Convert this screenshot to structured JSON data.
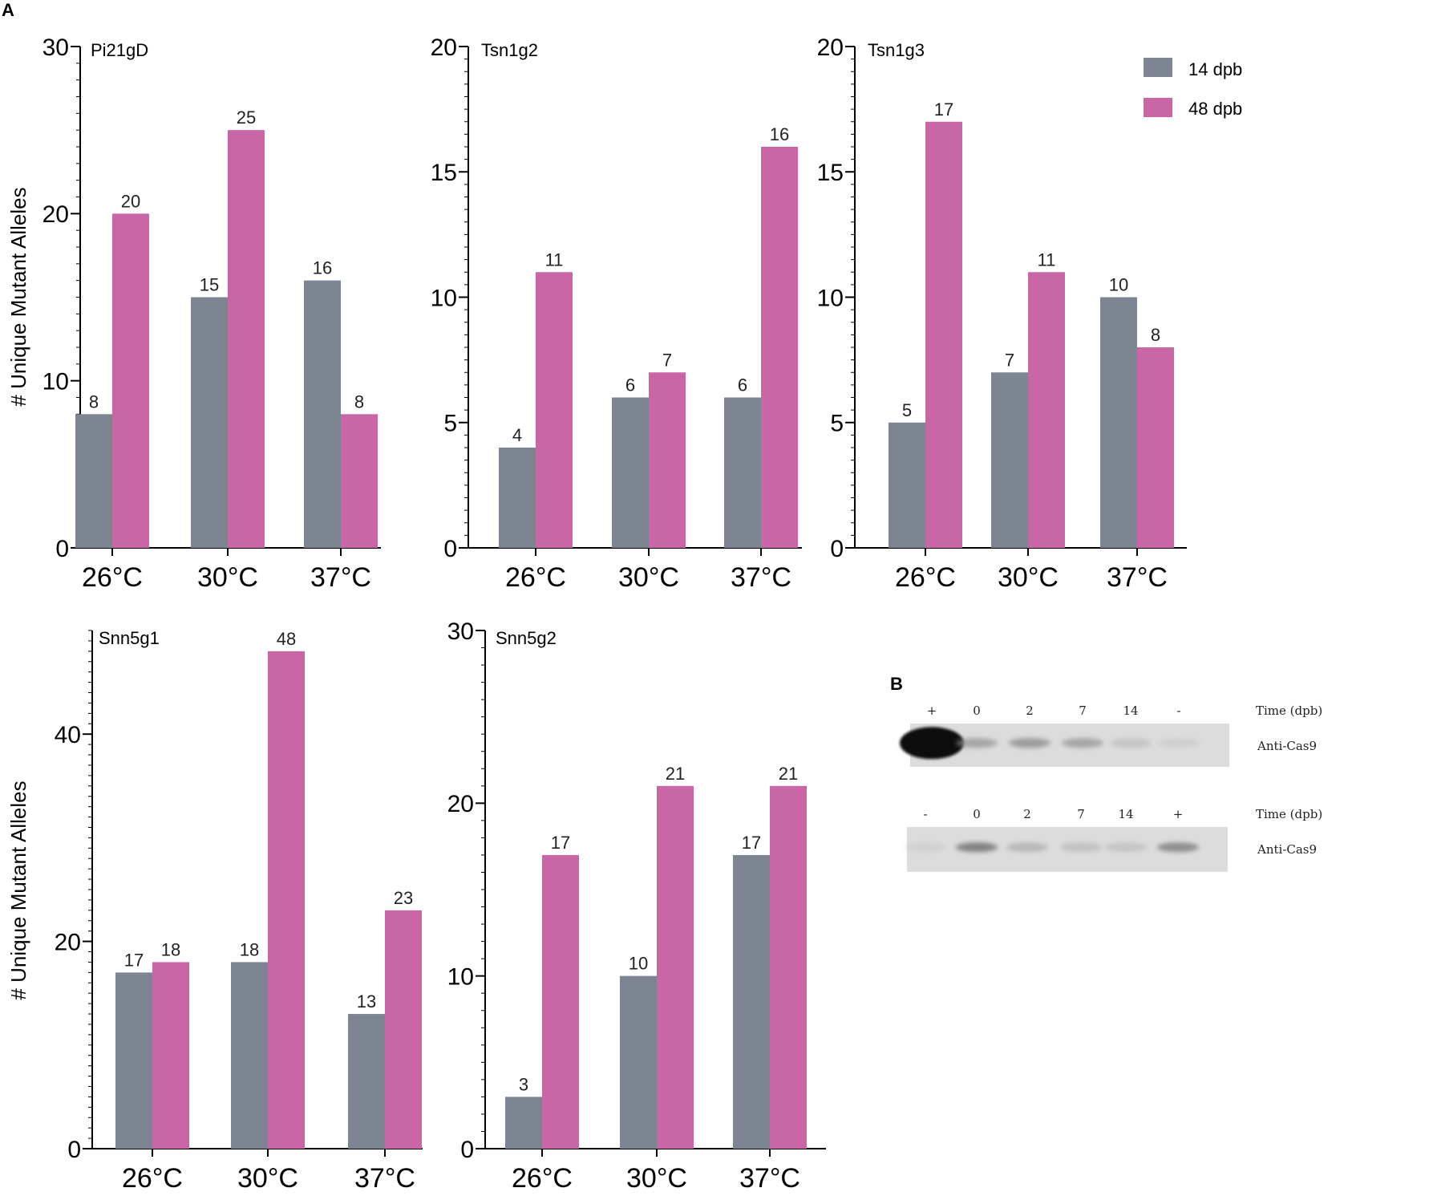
{
  "panels": {
    "a": "A",
    "b": "B"
  },
  "colors": {
    "series_14": "#7d8592",
    "series_48": "#c966a6",
    "axis": "#000000"
  },
  "legend": {
    "items": [
      {
        "label": "14 dpb",
        "color": "#7d8592"
      },
      {
        "label": "48 dpb",
        "color": "#c966a6"
      }
    ]
  },
  "chart_data": [
    {
      "type": "bar",
      "title": "Pi21gD",
      "categories": [
        "26°C",
        "30°C",
        "37°C"
      ],
      "series": [
        {
          "name": "14 dpb",
          "values": [
            8,
            15,
            16
          ]
        },
        {
          "name": "48 dpb",
          "values": [
            20,
            25,
            8
          ]
        }
      ],
      "ylabel": "# Unique Mutant Alleles",
      "ylim": [
        0,
        30
      ],
      "yticks": [
        0,
        10,
        20,
        30
      ]
    },
    {
      "type": "bar",
      "title": "Tsn1g2",
      "categories": [
        "26°C",
        "30°C",
        "37°C"
      ],
      "series": [
        {
          "name": "14 dpb",
          "values": [
            4,
            6,
            6
          ]
        },
        {
          "name": "48 dpb",
          "values": [
            11,
            7,
            16
          ]
        }
      ],
      "ylabel": "",
      "ylim": [
        0,
        20
      ],
      "yticks": [
        0,
        5,
        10,
        15,
        20
      ]
    },
    {
      "type": "bar",
      "title": "Tsn1g3",
      "categories": [
        "26°C",
        "30°C",
        "37°C"
      ],
      "series": [
        {
          "name": "14 dpb",
          "values": [
            5,
            7,
            10
          ]
        },
        {
          "name": "48 dpb",
          "values": [
            17,
            11,
            8
          ]
        }
      ],
      "ylabel": "",
      "ylim": [
        0,
        20
      ],
      "yticks": [
        0,
        5,
        10,
        15,
        20
      ]
    },
    {
      "type": "bar",
      "title": "Snn5g1",
      "categories": [
        "26°C",
        "30°C",
        "37°C"
      ],
      "series": [
        {
          "name": "14 dpb",
          "values": [
            17,
            18,
            13
          ]
        },
        {
          "name": "48 dpb",
          "values": [
            18,
            48,
            23
          ]
        }
      ],
      "ylabel": "# Unique Mutant Alleles",
      "ylim": [
        0,
        50
      ],
      "yticks": [
        0,
        20,
        40
      ]
    },
    {
      "type": "bar",
      "title": "Snn5g2",
      "categories": [
        "26°C",
        "30°C",
        "37°C"
      ],
      "series": [
        {
          "name": "14 dpb",
          "values": [
            3,
            10,
            17
          ]
        },
        {
          "name": "48 dpb",
          "values": [
            17,
            21,
            21
          ]
        }
      ],
      "ylabel": "",
      "ylim": [
        0,
        30
      ],
      "yticks": [
        0,
        10,
        20,
        30
      ]
    }
  ],
  "blot": {
    "rows": [
      {
        "lanes": [
          "+",
          "0",
          "2",
          "7",
          "14",
          "-"
        ],
        "time_label": "Time (dpb)",
        "antibody": "Anti-Cas9",
        "band_intensity": [
          1.0,
          0.3,
          0.35,
          0.3,
          0.12,
          0.05
        ]
      },
      {
        "lanes": [
          "-",
          "0",
          "2",
          "7",
          "14",
          "+"
        ],
        "time_label": "Time (dpb)",
        "antibody": "Anti-Cas9",
        "band_intensity": [
          0.03,
          0.45,
          0.2,
          0.15,
          0.12,
          0.4
        ]
      }
    ]
  }
}
